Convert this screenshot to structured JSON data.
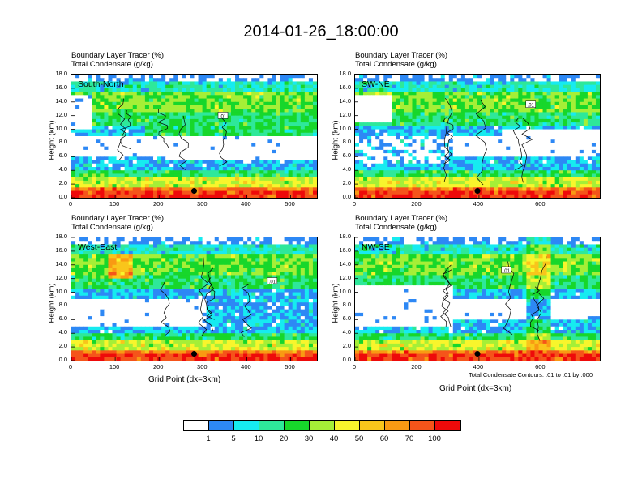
{
  "title": "2014-01-26_18:00:00",
  "panel_line1": "Boundary Layer Tracer    (%)",
  "panel_line2": "Total Condensate    (g/kg)",
  "y_axis_label": "Height (km)",
  "x_axis_label": "Grid Point (dx=3km)",
  "contour_note": "Total Condensate Contours: .01 to .01 by .000",
  "contour_label": ".01",
  "colorbar": {
    "colors": [
      "#ffffff",
      "#2d88f5",
      "#16ebf0",
      "#2ee89a",
      "#17d72b",
      "#a5ef37",
      "#f8f52c",
      "#f9c51b",
      "#f99a13",
      "#f5541a",
      "#ee0a0a"
    ],
    "labels": [
      "1",
      "5",
      "10",
      "20",
      "30",
      "40",
      "50",
      "60",
      "70",
      "100"
    ]
  },
  "chart_data": [
    {
      "type": "heatmap",
      "label": "South-North",
      "xlim": [
        0,
        560
      ],
      "xticks": [
        "0",
        "100",
        "200",
        "300",
        "400",
        "500"
      ],
      "ylim": [
        0,
        18
      ],
      "yticks": [
        "0.0",
        "2.0",
        "4.0",
        "6.0",
        "8.0",
        "10.0",
        "12.0",
        "14.0",
        "16.0",
        "18.0"
      ],
      "marker": {
        "x": 280,
        "y": 1.0
      }
    },
    {
      "type": "heatmap",
      "label": "SW-NE",
      "xlim": [
        0,
        790
      ],
      "xticks": [
        "0",
        "200",
        "400",
        "600"
      ],
      "ylim": [
        0,
        18
      ],
      "yticks": [
        "0.0",
        "2.0",
        "4.0",
        "6.0",
        "8.0",
        "10.0",
        "12.0",
        "14.0",
        "16.0",
        "18.0"
      ],
      "marker": {
        "x": 395,
        "y": 1.0
      }
    },
    {
      "type": "heatmap",
      "label": "West-East",
      "xlim": [
        0,
        560
      ],
      "xticks": [
        "0",
        "100",
        "200",
        "300",
        "400",
        "500"
      ],
      "ylim": [
        0,
        18
      ],
      "yticks": [
        "0.0",
        "2.0",
        "4.0",
        "6.0",
        "8.0",
        "10.0",
        "12.0",
        "14.0",
        "16.0",
        "18.0"
      ],
      "marker": {
        "x": 280,
        "y": 1.0
      }
    },
    {
      "type": "heatmap",
      "label": "NW-SE",
      "xlim": [
        0,
        790
      ],
      "xticks": [
        "0",
        "200",
        "400",
        "600"
      ],
      "ylim": [
        0,
        18
      ],
      "yticks": [
        "0.0",
        "2.0",
        "4.0",
        "6.0",
        "8.0",
        "10.0",
        "12.0",
        "14.0",
        "16.0",
        "18.0"
      ],
      "marker": {
        "x": 395,
        "y": 1.0
      }
    }
  ]
}
